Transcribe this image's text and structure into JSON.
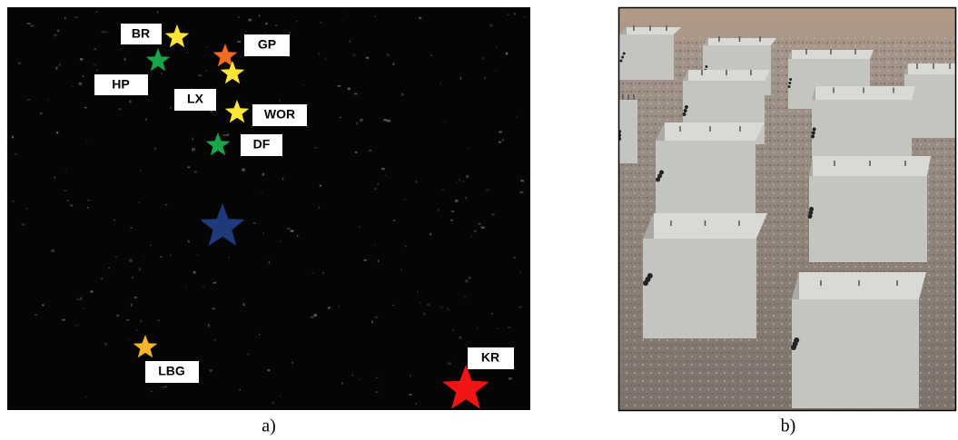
{
  "panels": [
    {
      "caption": "a)",
      "labels": [
        "BR",
        "GP",
        "HP",
        "LX",
        "WOR",
        "DF",
        "LBG",
        "KR"
      ]
    },
    {
      "caption": "b)"
    }
  ]
}
